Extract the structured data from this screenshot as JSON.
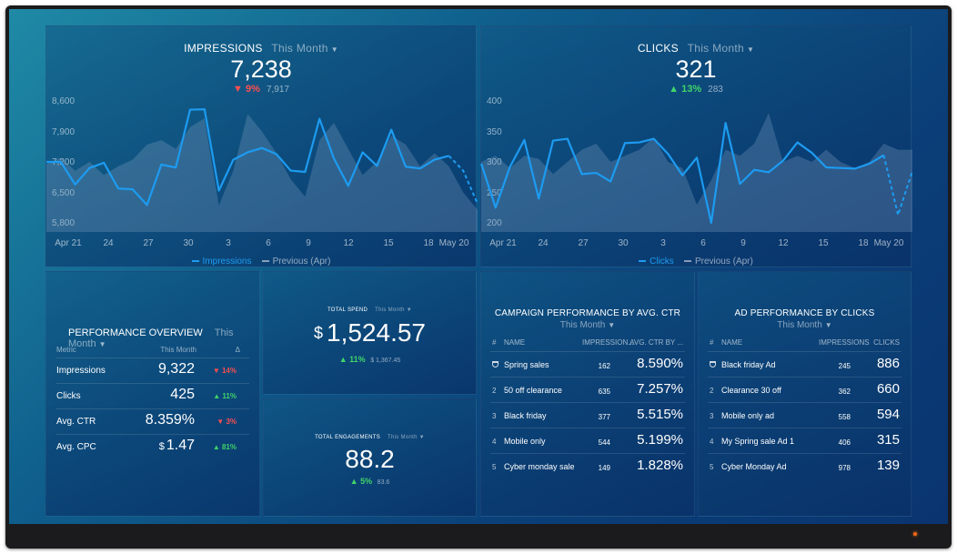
{
  "impressions": {
    "title": "IMPRESSIONS",
    "period": "This Month",
    "value": "7,238",
    "delta": "9%",
    "previous": "7,917",
    "yticks": [
      "8,600",
      "7,900",
      "7,200",
      "6,500",
      "5,800"
    ],
    "xticks": [
      "Apr 21",
      "24",
      "27",
      "30",
      "3",
      "6",
      "9",
      "12",
      "15",
      "18",
      "May 20"
    ],
    "legend_current": "Impressions",
    "legend_previous": "Previous (Apr)"
  },
  "clicks": {
    "title": "CLICKS",
    "period": "This Month",
    "value": "321",
    "delta": "13%",
    "previous": "283",
    "yticks": [
      "400",
      "350",
      "300",
      "250",
      "200"
    ],
    "xticks": [
      "Apr 21",
      "24",
      "27",
      "30",
      "3",
      "6",
      "9",
      "12",
      "15",
      "18",
      "May 20"
    ],
    "legend_current": "Clicks",
    "legend_previous": "Previous (Apr)"
  },
  "performance_overview": {
    "title": "PERFORMANCE OVERVIEW",
    "period": "This Month",
    "col_metric": "Metric",
    "col_this_month": "This Month",
    "col_delta": "Δ",
    "rows": [
      {
        "name": "Impressions",
        "value": "9,322",
        "currency": "",
        "delta": "14%",
        "dir": "down"
      },
      {
        "name": "Clicks",
        "value": "425",
        "currency": "",
        "delta": "11%",
        "dir": "up"
      },
      {
        "name": "Avg. CTR",
        "value": "8.359%",
        "currency": "",
        "delta": "3%",
        "dir": "down"
      },
      {
        "name": "Avg. CPC",
        "value": "1.47",
        "currency": "$",
        "delta": "81%",
        "dir": "up"
      }
    ]
  },
  "total_spend": {
    "label": "TOTAL SPEND",
    "period": "This Month",
    "currency": "$",
    "value": "1,524.57",
    "delta": "11%",
    "previous": "$ 1,367.45"
  },
  "total_engagements": {
    "label": "TOTAL ENGAGEMENTS",
    "period": "This Month",
    "value": "88.2",
    "delta": "5%",
    "previous": "83.6"
  },
  "campaign_table": {
    "title": "CAMPAIGN PERFORMANCE BY AVG. CTR",
    "period": "This Month",
    "col_idx": "#",
    "col_name": "NAME",
    "col_mid": "IMPRESSION...",
    "col_big": "AVG. CTR BY ...",
    "rows": [
      {
        "idx": "",
        "name": "Spring sales",
        "mid": "162",
        "big": "8.590%"
      },
      {
        "idx": "2",
        "name": "50 off clearance",
        "mid": "635",
        "big": "7.257%"
      },
      {
        "idx": "3",
        "name": "Black friday",
        "mid": "377",
        "big": "5.515%"
      },
      {
        "idx": "4",
        "name": "Mobile only",
        "mid": "544",
        "big": "5.199%"
      },
      {
        "idx": "5",
        "name": "Cyber monday sale",
        "mid": "149",
        "big": "1.828%"
      }
    ]
  },
  "ad_table": {
    "title": "AD PERFORMANCE BY CLICKS",
    "period": "This Month",
    "col_idx": "#",
    "col_name": "NAME",
    "col_mid": "IMPRESSIONS",
    "col_big": "CLICKS",
    "rows": [
      {
        "idx": "",
        "name": "Black friday Ad",
        "mid": "245",
        "big": "886"
      },
      {
        "idx": "2",
        "name": "Clearance 30 off",
        "mid": "362",
        "big": "660"
      },
      {
        "idx": "3",
        "name": "Mobile only ad",
        "mid": "558",
        "big": "594"
      },
      {
        "idx": "4",
        "name": "My Spring sale Ad 1",
        "mid": "406",
        "big": "315"
      },
      {
        "idx": "5",
        "name": "Cyber Monday Ad",
        "mid": "978",
        "big": "139"
      }
    ]
  },
  "chart_data": [
    {
      "type": "line",
      "ylim": [
        5800,
        8600
      ],
      "series": [
        {
          "name": "Impressions",
          "values": [
            7200,
            7200,
            6680,
            7060,
            7180,
            6590,
            6570,
            6210,
            7140,
            7070,
            8400,
            8410,
            6540,
            7250,
            7420,
            7520,
            7380,
            7000,
            6970,
            8190,
            7280,
            6650,
            7420,
            7110,
            7940,
            7090,
            7050,
            7250,
            7340,
            7000,
            6240
          ]
        },
        {
          "name": "Previous (Apr)",
          "values": [
            7150,
            7300,
            7000,
            7200,
            6900,
            7100,
            7250,
            7600,
            7700,
            7500,
            8000,
            8200,
            6200,
            7000,
            8300,
            7900,
            7400,
            6800,
            6400,
            7700,
            8100,
            7500,
            6900,
            7200,
            7800,
            7600,
            7100,
            7400,
            7100,
            6500,
            6100
          ]
        }
      ]
    },
    {
      "type": "line",
      "ylim": [
        200,
        400
      ],
      "series": [
        {
          "name": "Clicks",
          "values": [
            297,
            225,
            292,
            336,
            240,
            335,
            338,
            280,
            282,
            268,
            331,
            332,
            338,
            313,
            278,
            307,
            200,
            364,
            264,
            287,
            283,
            302,
            332,
            315,
            291,
            290,
            289,
            297,
            311,
            213,
            285
          ]
        },
        {
          "name": "Previous (Apr)",
          "values": [
            300,
            310,
            290,
            310,
            305,
            280,
            300,
            320,
            330,
            300,
            310,
            320,
            340,
            300,
            290,
            230,
            270,
            320,
            310,
            330,
            380,
            300,
            310,
            300,
            320,
            300,
            290,
            300,
            330,
            320,
            320
          ]
        }
      ]
    }
  ]
}
